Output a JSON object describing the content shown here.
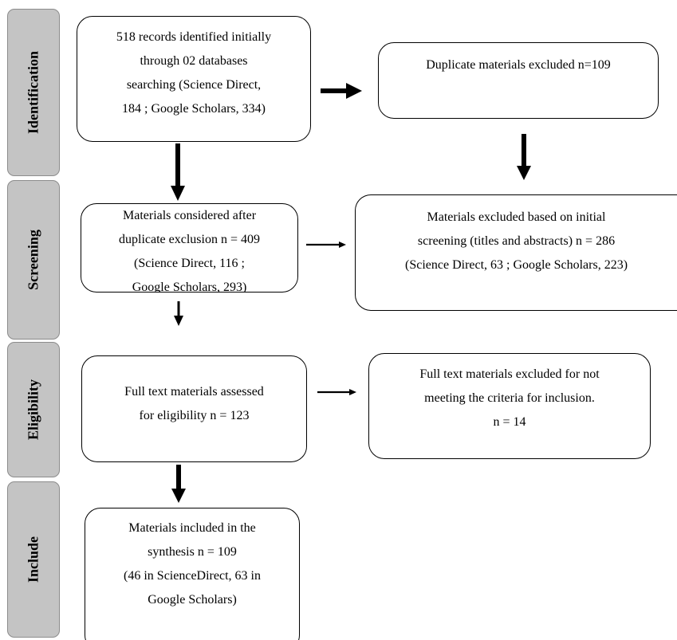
{
  "stages": [
    {
      "id": "identification",
      "label": "Identification"
    },
    {
      "id": "screening",
      "label": "Screening"
    },
    {
      "id": "eligibility",
      "label": "Eligibility"
    },
    {
      "id": "include",
      "label": "Include"
    }
  ],
  "boxes": {
    "records_identified": {
      "lines": [
        "518 records identified initially",
        "through 02 databases",
        "searching (Science Direct,",
        "184 ; Google Scholars, 334)"
      ]
    },
    "duplicates_excluded": {
      "lines": [
        "Duplicate materials excluded n=109"
      ]
    },
    "after_duplicates": {
      "lines": [
        "Materials considered after",
        "duplicate exclusion n = 409",
        "(Science Direct, 116 ;",
        "Google Scholars, 293)"
      ]
    },
    "excluded_screening": {
      "lines": [
        "Materials excluded based on initial",
        "screening (titles and abstracts) n = 286",
        "(Science Direct, 63 ; Google Scholars, 223)"
      ]
    },
    "full_text_assessed": {
      "lines": [
        "Full text materials assessed",
        "for eligibility n = 123"
      ]
    },
    "full_text_excluded": {
      "lines": [
        "Full text materials excluded for not",
        "meeting the criteria for inclusion.",
        "n = 14"
      ]
    },
    "included": {
      "lines": [
        "Materials included in the",
        "synthesis n = 109",
        "(46 in ScienceDirect, 63 in",
        "Google Scholars)"
      ]
    }
  },
  "colors": {
    "stage_fill": "#c4c4c4",
    "stage_border": "#8c8c8c",
    "box_border": "#000000",
    "arrow": "#000000"
  }
}
